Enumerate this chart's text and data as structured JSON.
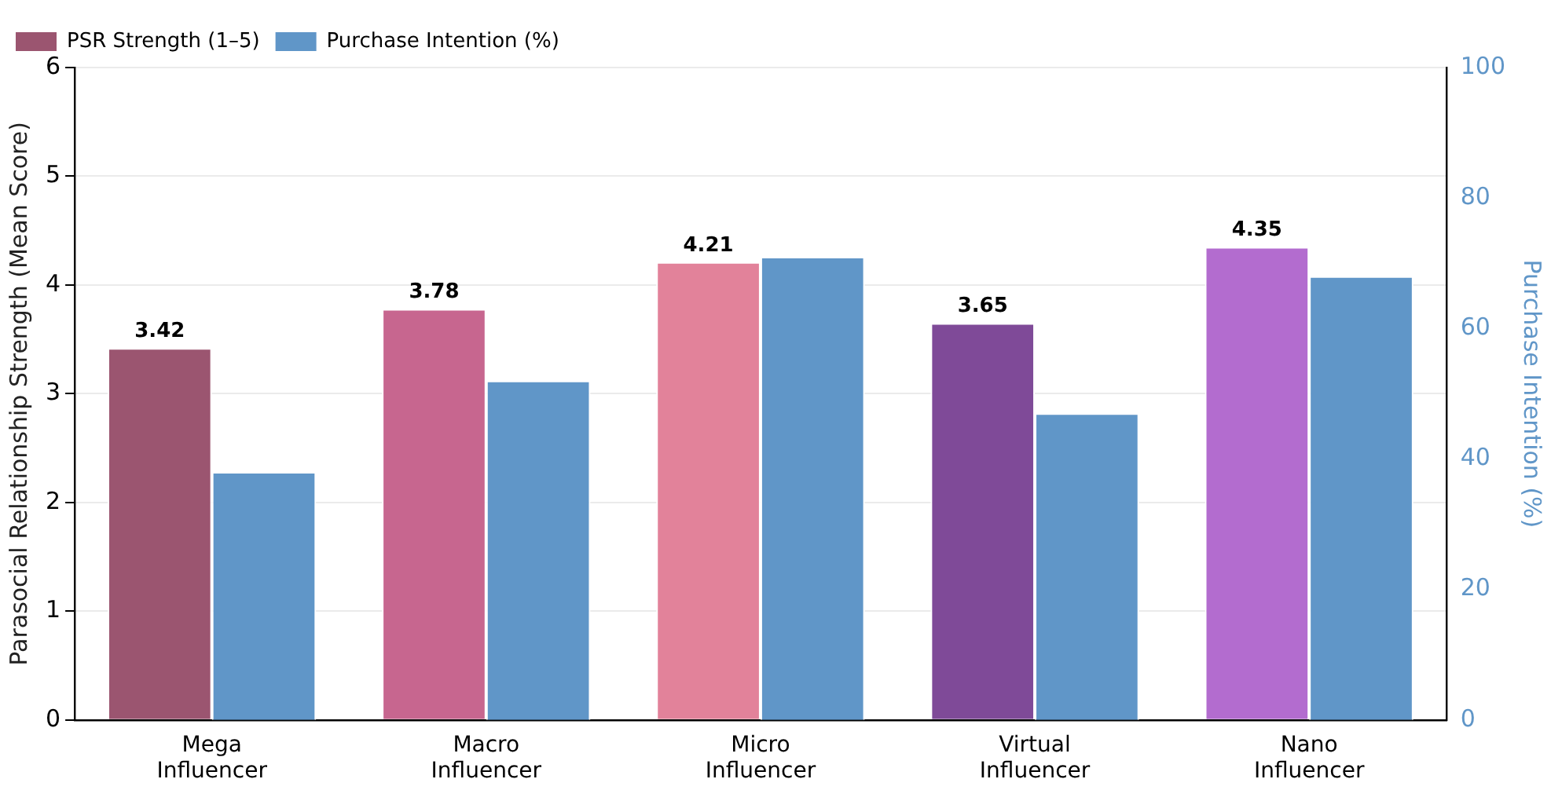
{
  "chart_data": {
    "type": "bar",
    "categories": [
      "Mega Influencer",
      "Macro Influencer",
      "Micro Influencer",
      "Virtual Influencer",
      "Nano Influencer"
    ],
    "series": [
      {
        "name": "PSR Strength (1–5)",
        "color": "#9b5570",
        "colors": [
          "#9b5570",
          "#c7668f",
          "#e2829a",
          "#7f4a98",
          "#b36ccf"
        ],
        "values": [
          3.42,
          3.78,
          4.21,
          3.65,
          4.35
        ],
        "value_labels": [
          "3.42",
          "3.78",
          "4.21",
          "3.65",
          "4.35"
        ]
      },
      {
        "name": "Purchase Intention (%)",
        "color": "#6096c8",
        "values": [
          38,
          52,
          71,
          47,
          68
        ],
        "axis": "y2"
      }
    ],
    "ylabel": "Parasocial Relationship Strength (Mean Score)",
    "y2label": "Purchase Intention (%)",
    "ylim": [
      0,
      6
    ],
    "yticks": [
      0,
      1,
      2,
      3,
      4,
      5,
      6
    ],
    "y2lim": [
      0,
      100
    ],
    "y2ticks": [
      0,
      20,
      40,
      60,
      80,
      100
    ],
    "grid": "y",
    "legend": "top left"
  }
}
